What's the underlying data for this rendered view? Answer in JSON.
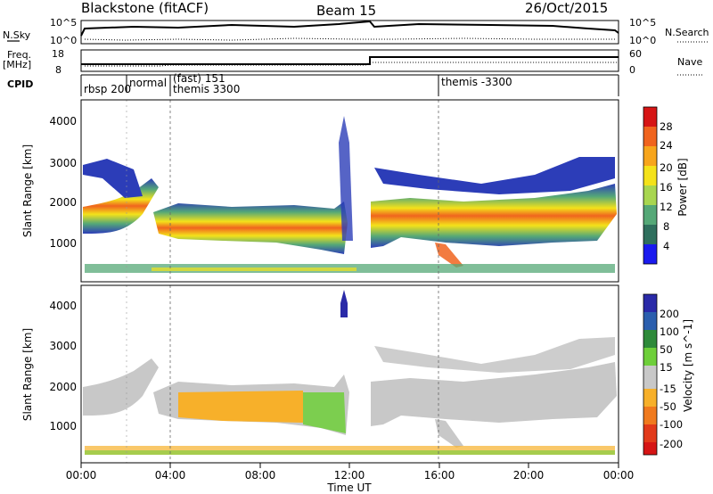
{
  "header": {
    "station": "Blackstone (fitACF)",
    "beam": "Beam 15",
    "date": "26/Oct/2015"
  },
  "top_panels": {
    "nsky_label": "N.Sky",
    "nsearch_label": "N.Search",
    "nsky_ticks": [
      "10^5",
      "10^0"
    ],
    "nsearch_ticks": [
      "10^5",
      "10^0"
    ],
    "freq_label_line1": "Freq.",
    "freq_label_line2": "[MHz]",
    "freq_ticks": [
      "18",
      "8"
    ],
    "nave_label": "Nave",
    "nave_ticks": [
      "60",
      "0"
    ],
    "cpid_label": "CPID",
    "cpid_segments": [
      "rbsp 200",
      "normal",
      "(fast) 151",
      "themis 3300",
      "themis -3300"
    ]
  },
  "chart_data": [
    {
      "type": "heatmap",
      "name": "power",
      "xlabel": "",
      "ylabel": "Slant Range [km]",
      "xlim": [
        0,
        24
      ],
      "ylim": [
        180,
        4600
      ],
      "yticks": [
        "1000",
        "2000",
        "3000",
        "4000"
      ],
      "colorbar_label": "Power [dB]",
      "colorbar_ticks": [
        "28",
        "24",
        "20",
        "16",
        "12",
        "8",
        "4"
      ],
      "colorbar_colors": [
        "#d61515",
        "#f0641e",
        "#f7a51c",
        "#f4e21a",
        "#a8d650",
        "#55a877",
        "#2f6f5d",
        "#2c3db8",
        "#1a1aef"
      ]
    },
    {
      "type": "heatmap",
      "name": "velocity",
      "xlabel": "Time UT",
      "ylabel": "Slant Range [km]",
      "xlim": [
        0,
        24
      ],
      "ylim": [
        180,
        4600
      ],
      "xticks": [
        "00:00",
        "04:00",
        "08:00",
        "12:00",
        "16:00",
        "20:00",
        "00:00"
      ],
      "yticks": [
        "1000",
        "2000",
        "3000",
        "4000"
      ],
      "colorbar_label": "Velocity [m s^-1]",
      "colorbar_ticks": [
        "200",
        "100",
        "50",
        "15",
        "-15",
        "-50",
        "-100",
        "-200"
      ],
      "colorbar_colors": [
        "#2a2aa8",
        "#2b5fae",
        "#2e8a3a",
        "#6ecf3a",
        "#c8c8c8",
        "#f7b02a",
        "#f07a1e",
        "#e23a1a",
        "#d61515"
      ]
    }
  ]
}
